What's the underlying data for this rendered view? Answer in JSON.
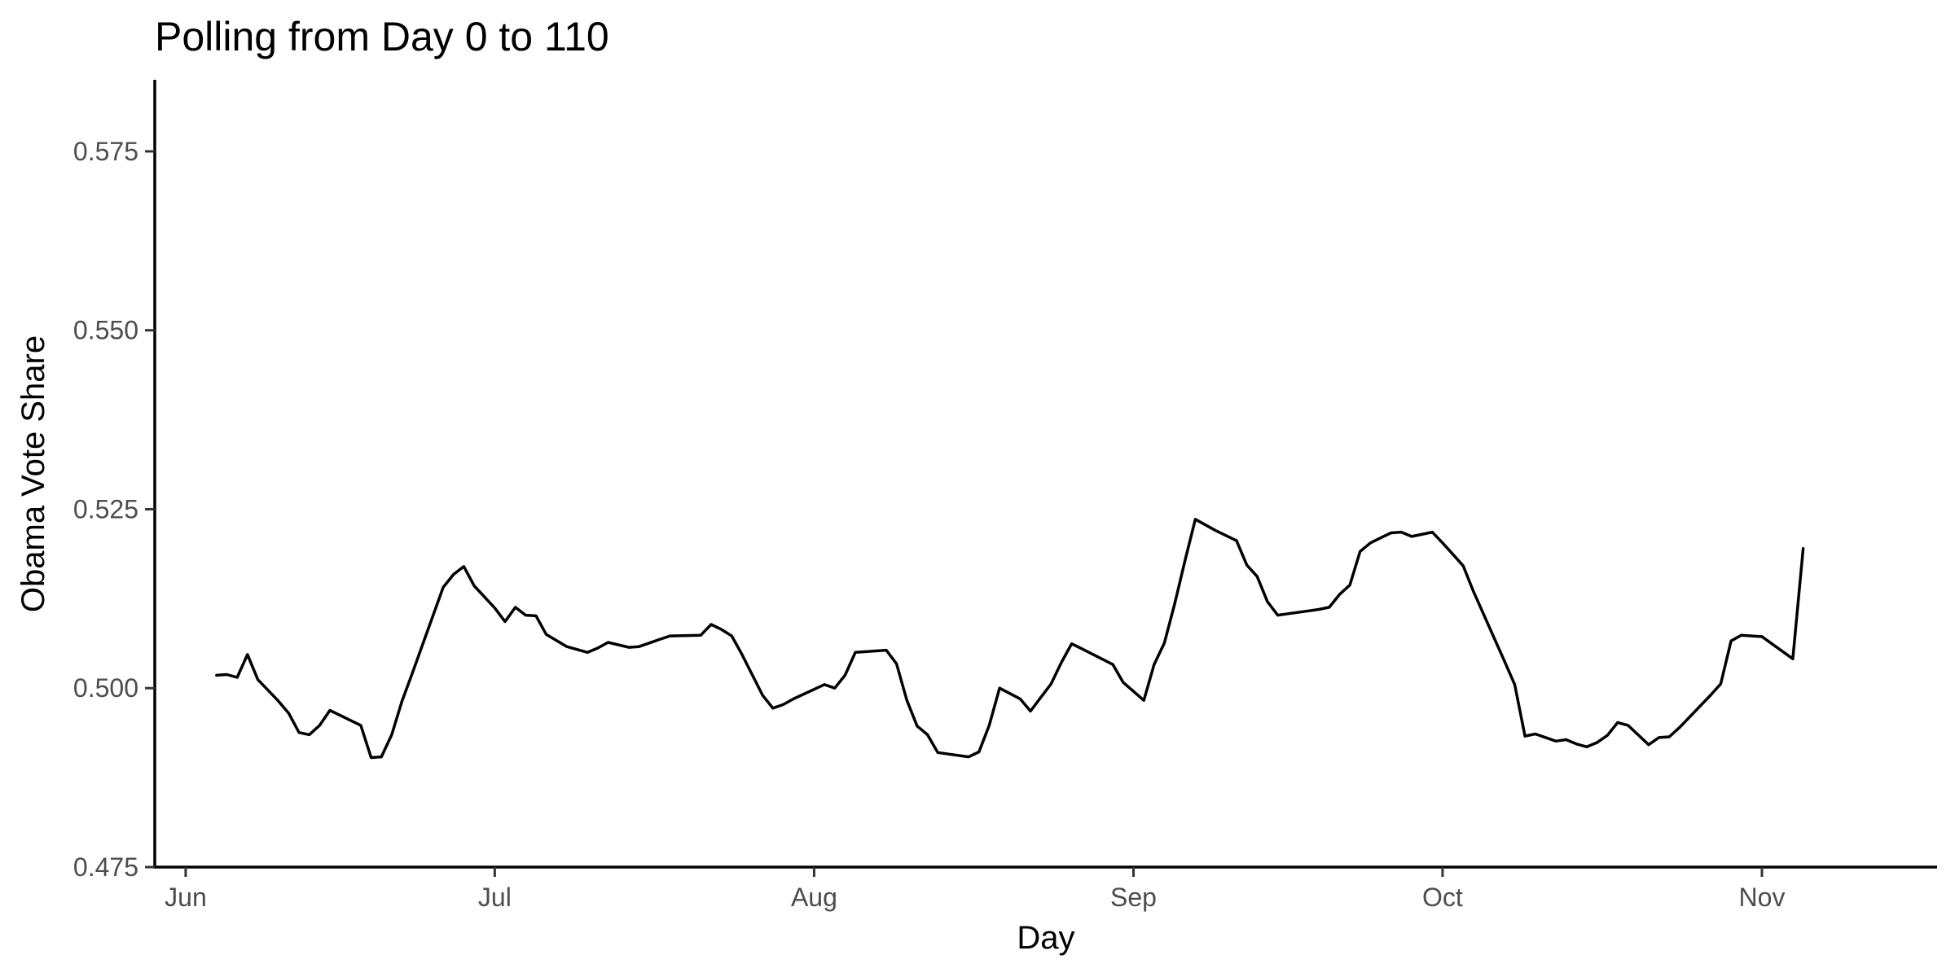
{
  "chart_data": {
    "type": "line",
    "title": "Polling from Day 0 to 110",
    "xlabel": "Day",
    "ylabel": "Obama Vote Share",
    "x_axis_type": "date",
    "xlim": [
      "2012-05-29",
      "2012-11-18"
    ],
    "ylim": [
      0.475,
      0.585
    ],
    "x_ticks": [
      {
        "date": "2012-06-01",
        "label": "Jun"
      },
      {
        "date": "2012-07-01",
        "label": "Jul"
      },
      {
        "date": "2012-08-01",
        "label": "Aug"
      },
      {
        "date": "2012-09-01",
        "label": "Sep"
      },
      {
        "date": "2012-10-01",
        "label": "Oct"
      },
      {
        "date": "2012-11-01",
        "label": "Nov"
      }
    ],
    "y_ticks": [
      0.475,
      0.5,
      0.525,
      0.55,
      0.575
    ],
    "y_tick_labels": [
      "0.475",
      "0.500",
      "0.525",
      "0.550",
      "0.575"
    ],
    "grid": false,
    "legend": "none",
    "line_color": "#000000",
    "series": [
      {
        "x": [
          "2012-06-04",
          "2012-06-05",
          "2012-06-06",
          "2012-06-07",
          "2012-06-08",
          "2012-06-10",
          "2012-06-11",
          "2012-06-12",
          "2012-06-13",
          "2012-06-14",
          "2012-06-15",
          "2012-06-17",
          "2012-06-18",
          "2012-06-19",
          "2012-06-20",
          "2012-06-21",
          "2012-06-22",
          "2012-06-23",
          "2012-06-24",
          "2012-06-25",
          "2012-06-26",
          "2012-06-27",
          "2012-06-28",
          "2012-06-29",
          "2012-07-01",
          "2012-07-02",
          "2012-07-03",
          "2012-07-04",
          "2012-07-05",
          "2012-07-06",
          "2012-07-08",
          "2012-07-10",
          "2012-07-11",
          "2012-07-12",
          "2012-07-14",
          "2012-07-15",
          "2012-07-16",
          "2012-07-17",
          "2012-07-18",
          "2012-07-21",
          "2012-07-22",
          "2012-07-23",
          "2012-07-24",
          "2012-07-25",
          "2012-07-27",
          "2012-07-28",
          "2012-07-29",
          "2012-07-30",
          "2012-08-02",
          "2012-08-03",
          "2012-08-04",
          "2012-08-05",
          "2012-08-08",
          "2012-08-09",
          "2012-08-10",
          "2012-08-11",
          "2012-08-12",
          "2012-08-13",
          "2012-08-16",
          "2012-08-17",
          "2012-08-18",
          "2012-08-19",
          "2012-08-21",
          "2012-08-22",
          "2012-08-24",
          "2012-08-25",
          "2012-08-26",
          "2012-08-27",
          "2012-08-30",
          "2012-08-31",
          "2012-09-02",
          "2012-09-03",
          "2012-09-04",
          "2012-09-05",
          "2012-09-06",
          "2012-09-07",
          "2012-09-08",
          "2012-09-09",
          "2012-09-11",
          "2012-09-12",
          "2012-09-13",
          "2012-09-14",
          "2012-09-15",
          "2012-09-16",
          "2012-09-18",
          "2012-09-19",
          "2012-09-20",
          "2012-09-21",
          "2012-09-22",
          "2012-09-23",
          "2012-09-24",
          "2012-09-25",
          "2012-09-26",
          "2012-09-27",
          "2012-09-28",
          "2012-09-30",
          "2012-10-01",
          "2012-10-02",
          "2012-10-03",
          "2012-10-04",
          "2012-10-07",
          "2012-10-08",
          "2012-10-09",
          "2012-10-10",
          "2012-10-12",
          "2012-10-13",
          "2012-10-14",
          "2012-10-15",
          "2012-10-16",
          "2012-10-17",
          "2012-10-18",
          "2012-10-19",
          "2012-10-21",
          "2012-10-22",
          "2012-10-23",
          "2012-10-24",
          "2012-10-27",
          "2012-10-28",
          "2012-10-29",
          "2012-10-30",
          "2012-11-01",
          "2012-11-04",
          "2012-11-05"
        ],
        "y": [
          0.5018,
          0.5019,
          0.5015,
          0.5047,
          0.5012,
          0.4982,
          0.4965,
          0.4938,
          0.4935,
          0.4948,
          0.4969,
          0.4955,
          0.4948,
          0.4903,
          0.4904,
          0.4935,
          0.4982,
          0.5021,
          0.5061,
          0.5101,
          0.5141,
          0.5159,
          0.517,
          0.5143,
          0.5112,
          0.5093,
          0.5113,
          0.5102,
          0.5101,
          0.5075,
          0.5058,
          0.505,
          0.5056,
          0.5064,
          0.5057,
          0.5058,
          0.5063,
          0.5068,
          0.5073,
          0.5074,
          0.5089,
          0.5082,
          0.5073,
          0.5047,
          0.499,
          0.4972,
          0.4977,
          0.4985,
          0.5005,
          0.5,
          0.5018,
          0.505,
          0.5053,
          0.5034,
          0.4983,
          0.4947,
          0.4935,
          0.491,
          0.4904,
          0.4911,
          0.4948,
          0.5,
          0.4985,
          0.4968,
          0.5006,
          0.5036,
          0.5062,
          0.5055,
          0.5033,
          0.5008,
          0.4983,
          0.5033,
          0.5063,
          0.5118,
          0.5178,
          0.5236,
          0.5228,
          0.522,
          0.5206,
          0.5172,
          0.5156,
          0.5121,
          0.5102,
          0.5104,
          0.5108,
          0.511,
          0.5113,
          0.5131,
          0.5144,
          0.5191,
          0.5203,
          0.521,
          0.5217,
          0.5218,
          0.5212,
          0.5218,
          0.5203,
          0.5187,
          0.5171,
          0.5135,
          0.5038,
          0.5005,
          0.4933,
          0.4936,
          0.4926,
          0.4928,
          0.4922,
          0.4918,
          0.4924,
          0.4934,
          0.4952,
          0.4948,
          0.4921,
          0.4931,
          0.4932,
          0.4945,
          0.499,
          0.5006,
          0.5066,
          0.5074,
          0.5072,
          0.5041,
          0.5195
        ]
      }
    ]
  }
}
